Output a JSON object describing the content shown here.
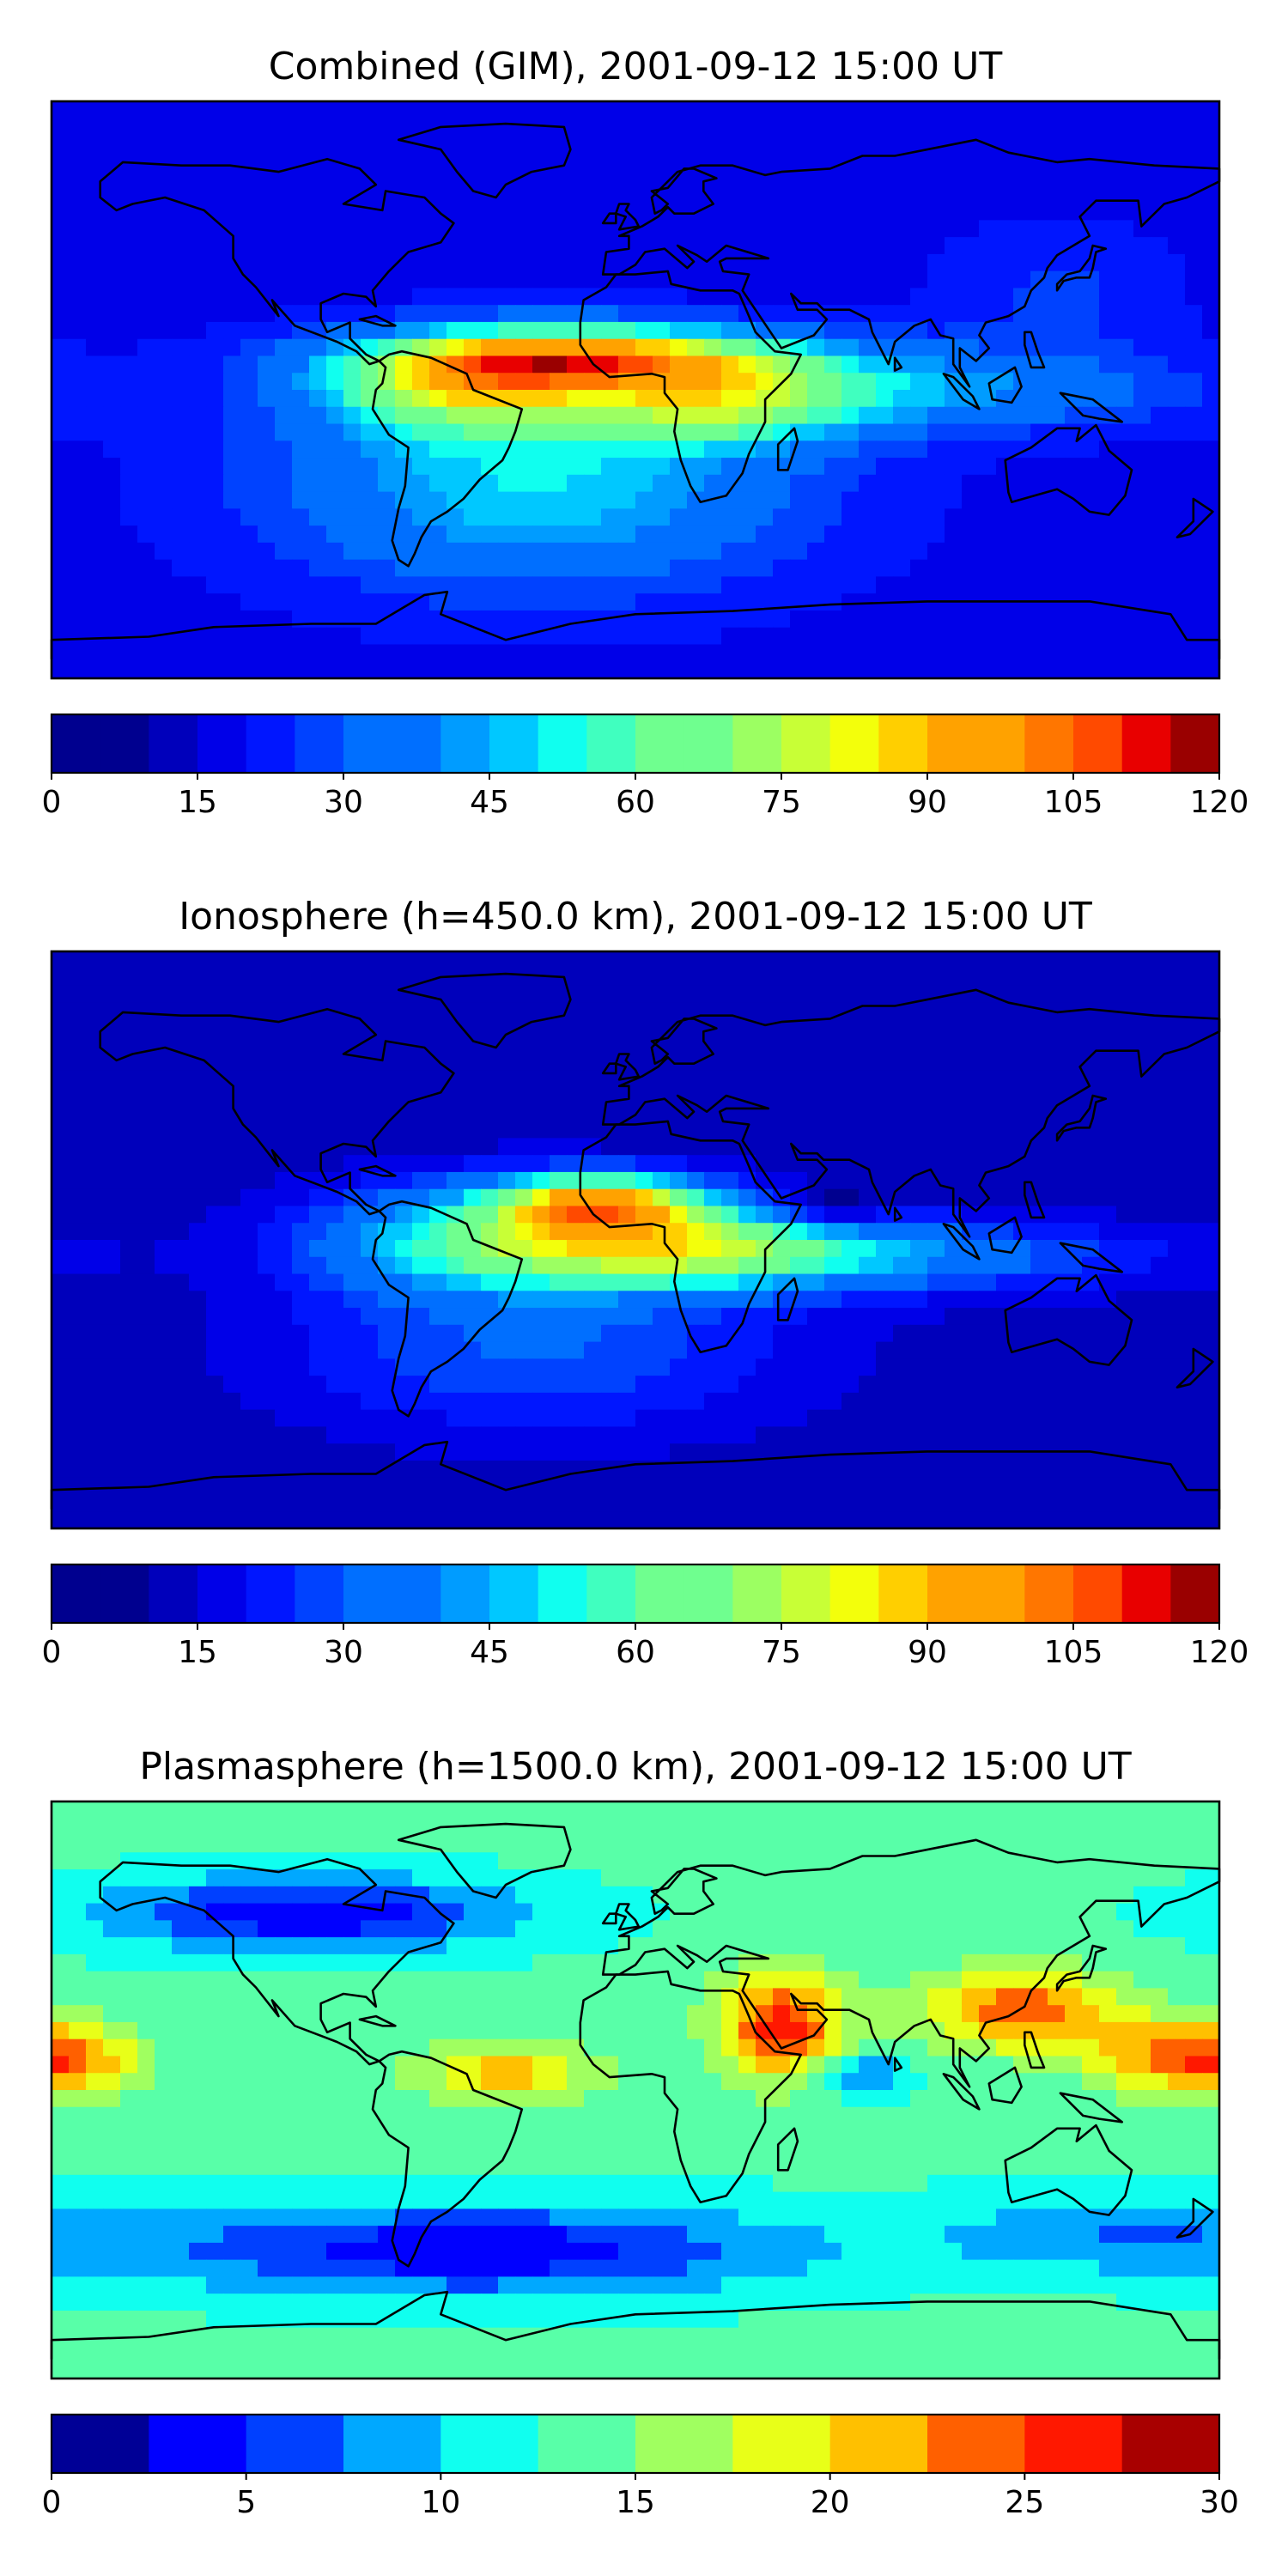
{
  "figure": {
    "colors_jet20": [
      "#00008f",
      "#0000bb",
      "#0000e8",
      "#0016ff",
      "#0042ff",
      "#006fff",
      "#009cff",
      "#00c8ff",
      "#10ffef",
      "#40ffbf",
      "#6fff8f",
      "#9cff62",
      "#c8ff36",
      "#f3ff0b",
      "#ffcf00",
      "#ffa200",
      "#ff7600",
      "#ff4a00",
      "#e80000",
      "#9a0000"
    ],
    "colors_jet12": [
      "#000096",
      "#0000ff",
      "#0040ff",
      "#00a8ff",
      "#10ffef",
      "#58ffa8",
      "#a0ff60",
      "#e8ff18",
      "#ffc000",
      "#ff6000",
      "#ff1800",
      "#a80000"
    ]
  },
  "chart_data": [
    {
      "type": "heatmap",
      "title": "Combined (GIM), 2001-09-12 15:00 UT",
      "projection": "world map (plate carree)",
      "colorbar": {
        "min": 0,
        "max": 120,
        "levels": 24,
        "palette": "colors_jet20",
        "ticks": [
          0,
          15,
          30,
          45,
          60,
          75,
          90,
          105,
          120
        ],
        "tick_labels": [
          "0",
          "15",
          "30",
          "45",
          "60",
          "75",
          "90",
          "105",
          "120"
        ]
      },
      "field": {
        "background": 18,
        "features": [
          {
            "lon": -15,
            "lat": 10,
            "sx": 45,
            "sy": 7,
            "amp": 68
          },
          {
            "lon": -55,
            "lat": 0,
            "sx": 30,
            "sy": 10,
            "amp": 45
          },
          {
            "lon": 25,
            "lat": -5,
            "sx": 30,
            "sy": 9,
            "amp": 35
          },
          {
            "lon": -30,
            "lat": -30,
            "sx": 55,
            "sy": 22,
            "amp": 32
          },
          {
            "lon": 80,
            "lat": 0,
            "sx": 60,
            "sy": 9,
            "amp": 24
          },
          {
            "lon": 130,
            "lat": 30,
            "sx": 25,
            "sy": 15,
            "amp": 8
          }
        ]
      }
    },
    {
      "type": "heatmap",
      "title": "Ionosphere  (h=450.0 km), 2001-09-12 15:00 UT",
      "projection": "world map (plate carree)",
      "colorbar": {
        "min": 0,
        "max": 120,
        "levels": 24,
        "palette": "colors_jet20",
        "ticks": [
          0,
          15,
          30,
          45,
          60,
          75,
          90,
          105,
          120
        ],
        "tick_labels": [
          "0",
          "15",
          "30",
          "45",
          "60",
          "75",
          "90",
          "105",
          "120"
        ]
      },
      "field": {
        "background": 12,
        "features": [
          {
            "lon": -10,
            "lat": 12,
            "sx": 22,
            "sy": 6,
            "amp": 62
          },
          {
            "lon": -40,
            "lat": 0,
            "sx": 40,
            "sy": 12,
            "amp": 48
          },
          {
            "lon": 20,
            "lat": -2,
            "sx": 35,
            "sy": 9,
            "amp": 40
          },
          {
            "lon": -30,
            "lat": -35,
            "sx": 55,
            "sy": 18,
            "amp": 18
          },
          {
            "lon": 80,
            "lat": -5,
            "sx": 55,
            "sy": 8,
            "amp": 25
          },
          {
            "lon": 60,
            "lat": 10,
            "sx": 12,
            "sy": 4,
            "amp": -15
          }
        ]
      }
    },
    {
      "type": "heatmap",
      "title": "Plasmasphere (h=1500.0 km), 2001-09-12 15:00 UT",
      "projection": "world map (plate carree)",
      "colorbar": {
        "min": 0,
        "max": 30,
        "levels": 12,
        "palette": "colors_jet12",
        "ticks": [
          0,
          5,
          10,
          15,
          20,
          25,
          30
        ],
        "tick_labels": [
          "0",
          "5",
          "10",
          "15",
          "20",
          "25",
          "30"
        ]
      },
      "field": {
        "background": 13,
        "features": [
          {
            "lon": 45,
            "lat": 20,
            "sx": 14,
            "sy": 12,
            "amp": 13
          },
          {
            "lon": 120,
            "lat": 25,
            "sx": 22,
            "sy": 9,
            "amp": 11
          },
          {
            "lon": -175,
            "lat": 10,
            "sx": 16,
            "sy": 8,
            "amp": 10
          },
          {
            "lon": 160,
            "lat": 10,
            "sx": 16,
            "sy": 8,
            "amp": 7
          },
          {
            "lon": -40,
            "lat": 5,
            "sx": 20,
            "sy": 7,
            "amp": 8
          },
          {
            "lon": -100,
            "lat": 55,
            "sx": 45,
            "sy": 8,
            "amp": -10
          },
          {
            "lon": -50,
            "lat": -50,
            "sx": 70,
            "sy": 10,
            "amp": -10
          },
          {
            "lon": 150,
            "lat": -45,
            "sx": 40,
            "sy": 9,
            "amp": -5
          },
          {
            "lon": 70,
            "lat": 5,
            "sx": 10,
            "sy": 5,
            "amp": -6
          }
        ]
      }
    }
  ]
}
